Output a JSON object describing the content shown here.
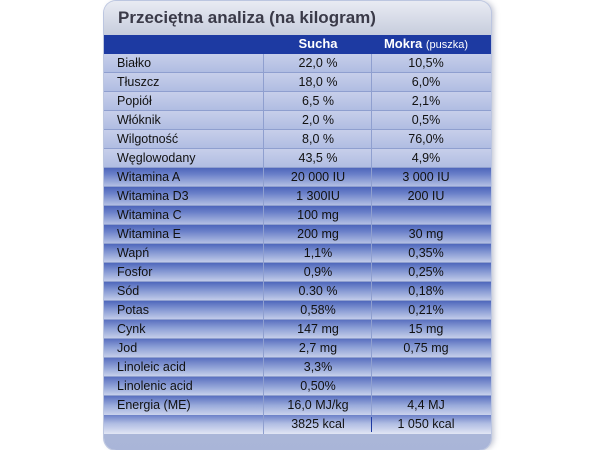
{
  "title": "Przeciętna analiza (na kilogram)",
  "columns": {
    "dry": "Sucha",
    "wet": "Mokra",
    "wet_note": "(puszka)"
  },
  "rows": [
    {
      "name": "Białko",
      "dry": "22,0 %",
      "wet": "10,5%"
    },
    {
      "name": "Tłuszcz",
      "dry": "18,0 %",
      "wet": "6,0%"
    },
    {
      "name": "Popiół",
      "dry": "6,5 %",
      "wet": "2,1%"
    },
    {
      "name": "Włóknik",
      "dry": "2,0 %",
      "wet": "0,5%"
    },
    {
      "name": "Wilgotność",
      "dry": "8,0 %",
      "wet": "76,0%"
    },
    {
      "name": "Węglowodany",
      "dry": "43,5 %",
      "wet": "4,9%"
    },
    {
      "name": "Witamina A",
      "dry": "20 000 IU",
      "wet": "3 000 IU"
    },
    {
      "name": "Witamina D3",
      "dry": "1 300IU",
      "wet": "200 IU"
    },
    {
      "name": "Witamina C",
      "dry": "100 mg",
      "wet": ""
    },
    {
      "name": "Witamina E",
      "dry": "200 mg",
      "wet": "30 mg"
    },
    {
      "name": "Wapń",
      "dry": "1,1%",
      "wet": "0,35%"
    },
    {
      "name": "Fosfor",
      "dry": "0,9%",
      "wet": "0,25%"
    },
    {
      "name": "Sód",
      "dry": "0.30 %",
      "wet": "0,18%"
    },
    {
      "name": "Potas",
      "dry": "0,58%",
      "wet": "0,21%"
    },
    {
      "name": "Cynk",
      "dry": "147 mg",
      "wet": "15 mg"
    },
    {
      "name": "Jod",
      "dry": "2,7 mg",
      "wet": "0,75 mg"
    },
    {
      "name": "Linoleic acid",
      "dry": "3,3%",
      "wet": ""
    },
    {
      "name": "Linolenic acid",
      "dry": "0,50%",
      "wet": ""
    },
    {
      "name": "Energia (ME)",
      "dry": "16,0 MJ/kg",
      "wet": "4,4 MJ"
    }
  ],
  "energy_kcal": {
    "dry": "3825 kcal",
    "wet": "1 050 kcal"
  }
}
